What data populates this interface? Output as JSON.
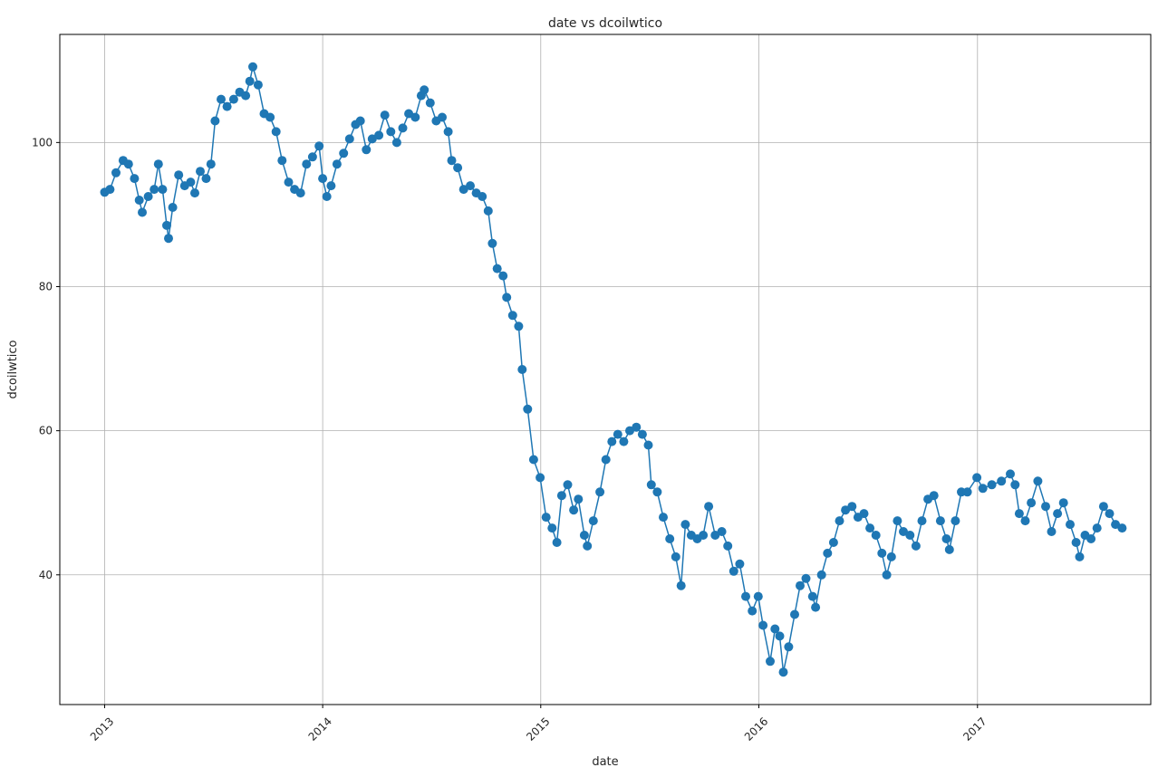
{
  "chart_data": {
    "type": "line",
    "title": "date vs dcoilwtico",
    "xlabel": "date",
    "ylabel": "dcoilwtico",
    "x_ticks": [
      "2013",
      "2014",
      "2015",
      "2016",
      "2017"
    ],
    "y_ticks": [
      "40",
      "60",
      "80",
      "100"
    ],
    "xlim": [
      "2012-10-18",
      "2017-10-18"
    ],
    "ylim": [
      22,
      115
    ],
    "grid": true,
    "marker": "circle",
    "color": "#1f77b4",
    "series": [
      {
        "points": [
          [
            "2013-01-01",
            93.1
          ],
          [
            "2013-01-10",
            93.5
          ],
          [
            "2013-01-20",
            95.8
          ],
          [
            "2013-02-01",
            97.5
          ],
          [
            "2013-02-10",
            97.0
          ],
          [
            "2013-02-20",
            95.0
          ],
          [
            "2013-02-28",
            92.0
          ],
          [
            "2013-03-05",
            90.3
          ],
          [
            "2013-03-15",
            92.5
          ],
          [
            "2013-03-25",
            93.5
          ],
          [
            "2013-04-01",
            97.0
          ],
          [
            "2013-04-08",
            93.5
          ],
          [
            "2013-04-15",
            88.5
          ],
          [
            "2013-04-18",
            86.7
          ],
          [
            "2013-04-25",
            91.0
          ],
          [
            "2013-05-05",
            95.5
          ],
          [
            "2013-05-15",
            94.0
          ],
          [
            "2013-05-25",
            94.5
          ],
          [
            "2013-06-01",
            93.0
          ],
          [
            "2013-06-10",
            96.0
          ],
          [
            "2013-06-20",
            95.0
          ],
          [
            "2013-06-28",
            97.0
          ],
          [
            "2013-07-05",
            103.0
          ],
          [
            "2013-07-15",
            106.0
          ],
          [
            "2013-07-25",
            105.0
          ],
          [
            "2013-08-05",
            106.0
          ],
          [
            "2013-08-15",
            107.0
          ],
          [
            "2013-08-25",
            106.5
          ],
          [
            "2013-09-01",
            108.5
          ],
          [
            "2013-09-06",
            110.5
          ],
          [
            "2013-09-15",
            108.0
          ],
          [
            "2013-09-25",
            104.0
          ],
          [
            "2013-10-05",
            103.5
          ],
          [
            "2013-10-15",
            101.5
          ],
          [
            "2013-10-25",
            97.5
          ],
          [
            "2013-11-05",
            94.5
          ],
          [
            "2013-11-15",
            93.5
          ],
          [
            "2013-11-25",
            93.0
          ],
          [
            "2013-12-05",
            97.0
          ],
          [
            "2013-12-15",
            98.0
          ],
          [
            "2013-12-26",
            99.5
          ],
          [
            "2014-01-01",
            95.0
          ],
          [
            "2014-01-08",
            92.5
          ],
          [
            "2014-01-15",
            94.0
          ],
          [
            "2014-01-25",
            97.0
          ],
          [
            "2014-02-05",
            98.5
          ],
          [
            "2014-02-15",
            100.5
          ],
          [
            "2014-02-25",
            102.5
          ],
          [
            "2014-03-05",
            103.0
          ],
          [
            "2014-03-15",
            99.0
          ],
          [
            "2014-03-25",
            100.5
          ],
          [
            "2014-04-05",
            101.0
          ],
          [
            "2014-04-15",
            103.8
          ],
          [
            "2014-04-25",
            101.5
          ],
          [
            "2014-05-05",
            100.0
          ],
          [
            "2014-05-15",
            102.0
          ],
          [
            "2014-05-25",
            104.0
          ],
          [
            "2014-06-05",
            103.5
          ],
          [
            "2014-06-15",
            106.5
          ],
          [
            "2014-06-20",
            107.3
          ],
          [
            "2014-06-30",
            105.5
          ],
          [
            "2014-07-10",
            103.0
          ],
          [
            "2014-07-20",
            103.5
          ],
          [
            "2014-07-30",
            101.5
          ],
          [
            "2014-08-05",
            97.5
          ],
          [
            "2014-08-15",
            96.5
          ],
          [
            "2014-08-25",
            93.5
          ],
          [
            "2014-09-05",
            94.0
          ],
          [
            "2014-09-15",
            93.0
          ],
          [
            "2014-09-25",
            92.5
          ],
          [
            "2014-10-05",
            90.5
          ],
          [
            "2014-10-12",
            86.0
          ],
          [
            "2014-10-20",
            82.5
          ],
          [
            "2014-10-30",
            81.5
          ],
          [
            "2014-11-05",
            78.5
          ],
          [
            "2014-11-15",
            76.0
          ],
          [
            "2014-11-25",
            74.5
          ],
          [
            "2014-12-01",
            68.5
          ],
          [
            "2014-12-10",
            63.0
          ],
          [
            "2014-12-20",
            56.0
          ],
          [
            "2014-12-31",
            53.5
          ],
          [
            "2015-01-10",
            48.0
          ],
          [
            "2015-01-20",
            46.5
          ],
          [
            "2015-01-28",
            44.5
          ],
          [
            "2015-02-05",
            51.0
          ],
          [
            "2015-02-15",
            52.5
          ],
          [
            "2015-02-25",
            49.0
          ],
          [
            "2015-03-05",
            50.5
          ],
          [
            "2015-03-15",
            45.5
          ],
          [
            "2015-03-20",
            44.0
          ],
          [
            "2015-03-30",
            47.5
          ],
          [
            "2015-04-10",
            51.5
          ],
          [
            "2015-04-20",
            56.0
          ],
          [
            "2015-04-30",
            58.5
          ],
          [
            "2015-05-10",
            59.5
          ],
          [
            "2015-05-20",
            58.5
          ],
          [
            "2015-05-30",
            60.0
          ],
          [
            "2015-06-10",
            60.5
          ],
          [
            "2015-06-20",
            59.5
          ],
          [
            "2015-06-30",
            58.0
          ],
          [
            "2015-07-05",
            52.5
          ],
          [
            "2015-07-15",
            51.5
          ],
          [
            "2015-07-25",
            48.0
          ],
          [
            "2015-08-05",
            45.0
          ],
          [
            "2015-08-15",
            42.5
          ],
          [
            "2015-08-24",
            38.5
          ],
          [
            "2015-08-31",
            47.0
          ],
          [
            "2015-09-10",
            45.5
          ],
          [
            "2015-09-20",
            45.0
          ],
          [
            "2015-09-30",
            45.5
          ],
          [
            "2015-10-09",
            49.5
          ],
          [
            "2015-10-20",
            45.5
          ],
          [
            "2015-10-31",
            46.0
          ],
          [
            "2015-11-10",
            44.0
          ],
          [
            "2015-11-20",
            40.5
          ],
          [
            "2015-11-30",
            41.5
          ],
          [
            "2015-12-10",
            37.0
          ],
          [
            "2015-12-21",
            35.0
          ],
          [
            "2015-12-31",
            37.0
          ],
          [
            "2016-01-08",
            33.0
          ],
          [
            "2016-01-20",
            28.0
          ],
          [
            "2016-01-28",
            32.5
          ],
          [
            "2016-02-05",
            31.5
          ],
          [
            "2016-02-11",
            26.5
          ],
          [
            "2016-02-20",
            30.0
          ],
          [
            "2016-03-01",
            34.5
          ],
          [
            "2016-03-10",
            38.5
          ],
          [
            "2016-03-20",
            39.5
          ],
          [
            "2016-03-31",
            37.0
          ],
          [
            "2016-04-05",
            35.5
          ],
          [
            "2016-04-15",
            40.0
          ],
          [
            "2016-04-25",
            43.0
          ],
          [
            "2016-05-05",
            44.5
          ],
          [
            "2016-05-15",
            47.5
          ],
          [
            "2016-05-25",
            49.0
          ],
          [
            "2016-06-05",
            49.5
          ],
          [
            "2016-06-15",
            48.0
          ],
          [
            "2016-06-25",
            48.5
          ],
          [
            "2016-07-05",
            46.5
          ],
          [
            "2016-07-15",
            45.5
          ],
          [
            "2016-07-25",
            43.0
          ],
          [
            "2016-08-02",
            40.0
          ],
          [
            "2016-08-10",
            42.5
          ],
          [
            "2016-08-20",
            47.5
          ],
          [
            "2016-08-30",
            46.0
          ],
          [
            "2016-09-10",
            45.5
          ],
          [
            "2016-09-20",
            44.0
          ],
          [
            "2016-09-30",
            47.5
          ],
          [
            "2016-10-10",
            50.5
          ],
          [
            "2016-10-20",
            51.0
          ],
          [
            "2016-10-31",
            47.5
          ],
          [
            "2016-11-10",
            45.0
          ],
          [
            "2016-11-15",
            43.5
          ],
          [
            "2016-11-25",
            47.5
          ],
          [
            "2016-12-05",
            51.5
          ],
          [
            "2016-12-15",
            51.5
          ],
          [
            "2016-12-31",
            53.5
          ],
          [
            "2017-01-10",
            52.0
          ],
          [
            "2017-01-25",
            52.5
          ],
          [
            "2017-02-10",
            53.0
          ],
          [
            "2017-02-25",
            54.0
          ],
          [
            "2017-03-05",
            52.5
          ],
          [
            "2017-03-12",
            48.5
          ],
          [
            "2017-03-22",
            47.5
          ],
          [
            "2017-04-01",
            50.0
          ],
          [
            "2017-04-12",
            53.0
          ],
          [
            "2017-04-25",
            49.5
          ],
          [
            "2017-05-05",
            46.0
          ],
          [
            "2017-05-15",
            48.5
          ],
          [
            "2017-05-25",
            50.0
          ],
          [
            "2017-06-05",
            47.0
          ],
          [
            "2017-06-15",
            44.5
          ],
          [
            "2017-06-21",
            42.5
          ],
          [
            "2017-06-30",
            45.5
          ],
          [
            "2017-07-10",
            45.0
          ],
          [
            "2017-07-20",
            46.5
          ],
          [
            "2017-07-31",
            49.5
          ],
          [
            "2017-08-10",
            48.5
          ],
          [
            "2017-08-20",
            47.0
          ],
          [
            "2017-08-31",
            46.5
          ]
        ]
      }
    ]
  }
}
